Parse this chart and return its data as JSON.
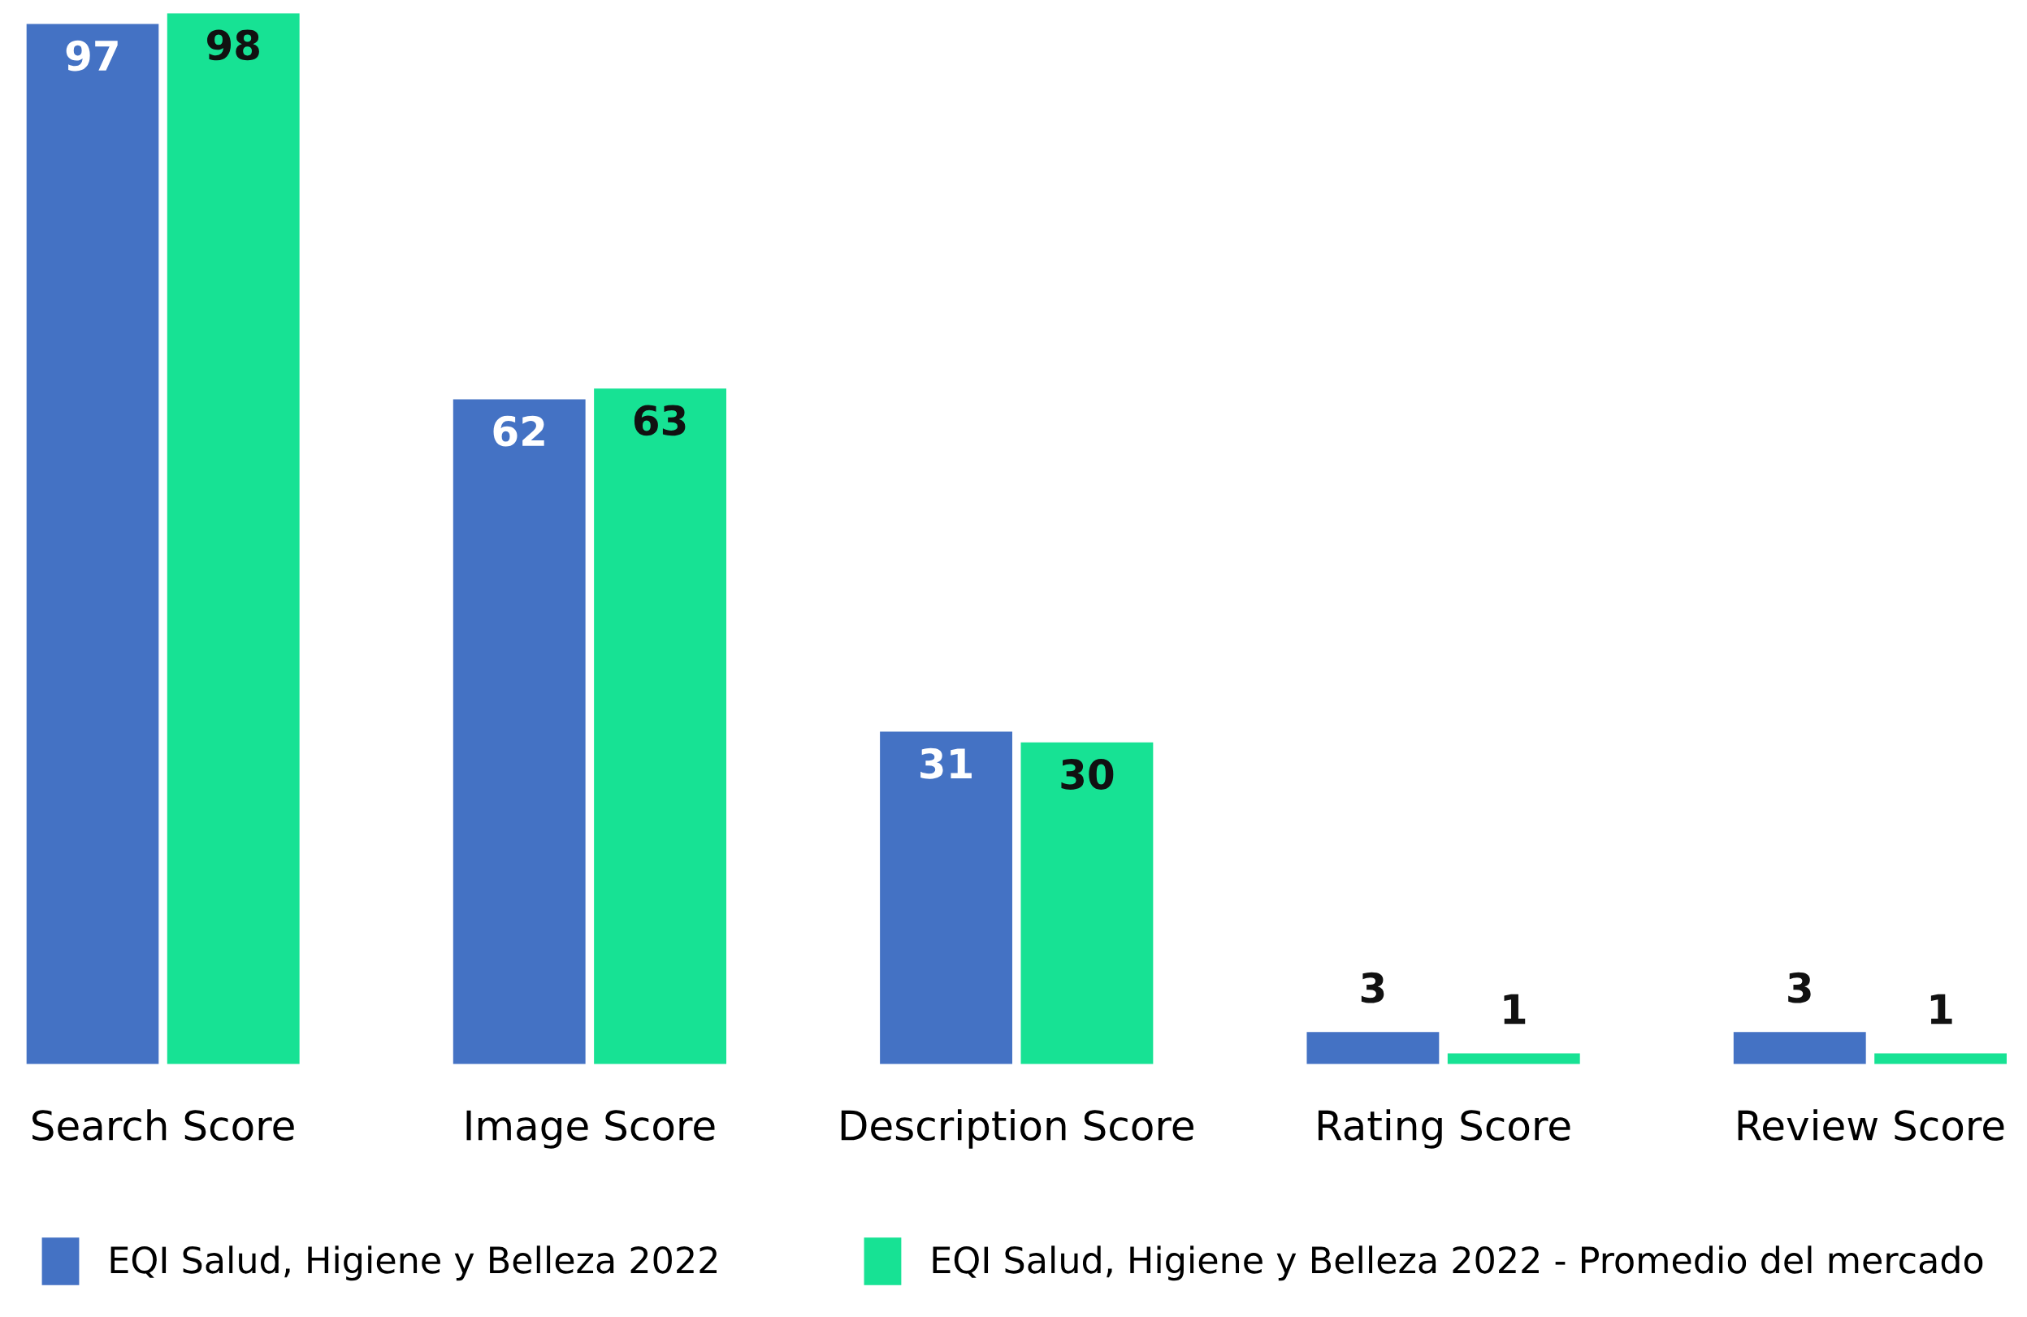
{
  "chart_data": {
    "type": "bar",
    "categories": [
      "Search Score",
      "Image Score",
      "Description Score",
      "Rating Score",
      "Review Score"
    ],
    "series": [
      {
        "name": "EQI Salud, Higiene y Belleza 2022",
        "color": "#4472c4",
        "values": [
          97,
          62,
          31,
          3,
          3
        ]
      },
      {
        "name": "EQI Salud, Higiene y Belleza 2022 - Promedio del mercado",
        "color": "#17e294",
        "values": [
          98,
          63,
          30,
          1,
          1
        ]
      }
    ],
    "data_labels": true,
    "grid": false,
    "legend": "bottom"
  }
}
